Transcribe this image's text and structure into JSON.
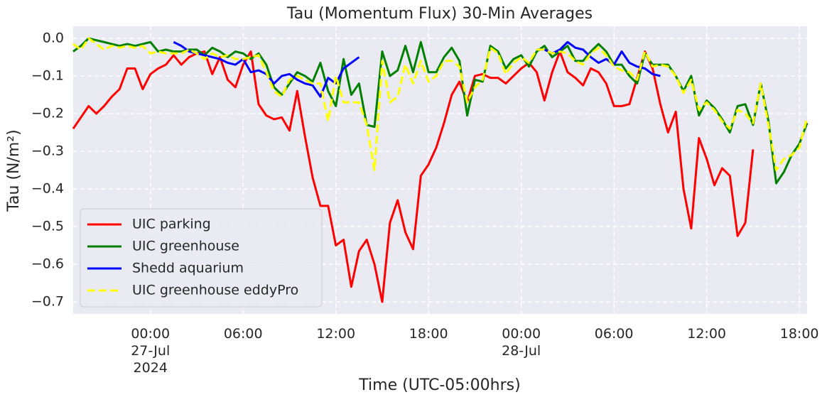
{
  "chart_data": {
    "type": "line",
    "title": "Tau (Momentum Flux) 30-Min Averages",
    "xlabel": "Time (UTC-05:00hrs)",
    "ylabel": "Tau (N/m²)",
    "grid": true,
    "legend": "lower left",
    "xlim": [
      "2024-07-26 19:00",
      "2024-07-28 18:30"
    ],
    "ylim": [
      -0.732,
      0.032
    ],
    "xticks": [
      {
        "value": "2024-07-27 00:00",
        "label": "00:00\n27-Jul\n2024"
      },
      {
        "value": "2024-07-27 06:00",
        "label": "06:00"
      },
      {
        "value": "2024-07-27 12:00",
        "label": "12:00"
      },
      {
        "value": "2024-07-27 18:00",
        "label": "18:00"
      },
      {
        "value": "2024-07-28 00:00",
        "label": "00:00\n28-Jul"
      },
      {
        "value": "2024-07-28 06:00",
        "label": "06:00"
      },
      {
        "value": "2024-07-28 12:00",
        "label": "12:00"
      },
      {
        "value": "2024-07-28 18:00",
        "label": "18:00"
      }
    ],
    "yticks": [
      {
        "value": 0,
        "label": "0.0"
      },
      {
        "value": -0.1,
        "label": "−0.1"
      },
      {
        "value": -0.2,
        "label": "−0.2"
      },
      {
        "value": -0.3,
        "label": "−0.3"
      },
      {
        "value": -0.4,
        "label": "−0.4"
      },
      {
        "value": -0.5,
        "label": "−0.5"
      },
      {
        "value": -0.6,
        "label": "−0.6"
      },
      {
        "value": -0.7,
        "label": "−0.7"
      }
    ],
    "x": [
      "2024-07-26 19:00",
      "2024-07-26 19:30",
      "2024-07-26 20:00",
      "2024-07-26 20:30",
      "2024-07-26 21:00",
      "2024-07-26 21:30",
      "2024-07-26 22:00",
      "2024-07-26 22:30",
      "2024-07-26 23:00",
      "2024-07-26 23:30",
      "2024-07-27 00:00",
      "2024-07-27 00:30",
      "2024-07-27 01:00",
      "2024-07-27 01:30",
      "2024-07-27 02:00",
      "2024-07-27 02:30",
      "2024-07-27 03:00",
      "2024-07-27 03:30",
      "2024-07-27 04:00",
      "2024-07-27 04:30",
      "2024-07-27 05:00",
      "2024-07-27 05:30",
      "2024-07-27 06:00",
      "2024-07-27 06:30",
      "2024-07-27 07:00",
      "2024-07-27 07:30",
      "2024-07-27 08:00",
      "2024-07-27 08:30",
      "2024-07-27 09:00",
      "2024-07-27 09:30",
      "2024-07-27 10:00",
      "2024-07-27 10:30",
      "2024-07-27 11:00",
      "2024-07-27 11:30",
      "2024-07-27 12:00",
      "2024-07-27 12:30",
      "2024-07-27 13:00",
      "2024-07-27 13:30",
      "2024-07-27 14:00",
      "2024-07-27 14:30",
      "2024-07-27 15:00",
      "2024-07-27 15:30",
      "2024-07-27 16:00",
      "2024-07-27 16:30",
      "2024-07-27 17:00",
      "2024-07-27 17:30",
      "2024-07-27 18:00",
      "2024-07-27 18:30",
      "2024-07-27 19:00",
      "2024-07-27 19:30",
      "2024-07-27 20:00",
      "2024-07-27 20:30",
      "2024-07-27 21:00",
      "2024-07-27 21:30",
      "2024-07-27 22:00",
      "2024-07-27 22:30",
      "2024-07-27 23:00",
      "2024-07-27 23:30",
      "2024-07-28 00:00",
      "2024-07-28 00:30",
      "2024-07-28 01:00",
      "2024-07-28 01:30",
      "2024-07-28 02:00",
      "2024-07-28 02:30",
      "2024-07-28 03:00",
      "2024-07-28 03:30",
      "2024-07-28 04:00",
      "2024-07-28 04:30",
      "2024-07-28 05:00",
      "2024-07-28 05:30",
      "2024-07-28 06:00",
      "2024-07-28 06:30",
      "2024-07-28 07:00",
      "2024-07-28 07:30",
      "2024-07-28 08:00",
      "2024-07-28 08:30",
      "2024-07-28 09:00",
      "2024-07-28 09:30",
      "2024-07-28 10:00",
      "2024-07-28 10:30",
      "2024-07-28 11:00",
      "2024-07-28 11:30",
      "2024-07-28 12:00",
      "2024-07-28 12:30",
      "2024-07-28 13:00",
      "2024-07-28 13:30",
      "2024-07-28 14:00",
      "2024-07-28 14:30",
      "2024-07-28 15:00",
      "2024-07-28 15:30",
      "2024-07-28 16:00",
      "2024-07-28 16:30",
      "2024-07-28 17:00",
      "2024-07-28 17:30",
      "2024-07-28 18:00",
      "2024-07-28 18:30"
    ],
    "series": [
      {
        "name": "UIC parking",
        "color": "#ff0000",
        "linestyle": "solid",
        "values": [
          -0.24,
          -0.21,
          -0.18,
          -0.2,
          -0.18,
          -0.155,
          -0.135,
          -0.08,
          -0.08,
          -0.135,
          -0.095,
          -0.08,
          -0.07,
          -0.045,
          -0.07,
          -0.05,
          -0.04,
          -0.035,
          -0.095,
          -0.05,
          -0.11,
          -0.13,
          -0.07,
          -0.035,
          -0.175,
          -0.205,
          -0.215,
          -0.21,
          -0.245,
          -0.14,
          -0.26,
          -0.37,
          -0.445,
          -0.445,
          -0.55,
          -0.535,
          -0.66,
          -0.565,
          -0.535,
          -0.6,
          -0.7,
          -0.49,
          -0.43,
          -0.515,
          -0.56,
          -0.365,
          -0.335,
          -0.29,
          -0.225,
          -0.15,
          -0.115,
          -0.17,
          -0.1,
          -0.095,
          -0.105,
          -0.105,
          -0.12,
          -0.1,
          -0.08,
          -0.065,
          -0.09,
          -0.165,
          -0.09,
          -0.035,
          -0.09,
          -0.105,
          -0.125,
          -0.08,
          -0.09,
          -0.12,
          -0.18,
          -0.18,
          -0.175,
          -0.105,
          -0.035,
          -0.08,
          -0.175,
          -0.25,
          -0.195,
          -0.4,
          -0.505,
          -0.265,
          -0.32,
          -0.39,
          -0.345,
          -0.365,
          -0.525,
          -0.49,
          -0.295,
          null,
          null,
          null,
          null,
          null,
          null,
          null
        ]
      },
      {
        "name": "UIC greenhouse",
        "color": "#008000",
        "linestyle": "solid",
        "values": [
          -0.035,
          -0.02,
          0.0,
          -0.005,
          -0.01,
          -0.015,
          -0.02,
          -0.015,
          -0.02,
          -0.015,
          -0.01,
          -0.035,
          -0.03,
          -0.035,
          -0.035,
          -0.03,
          -0.03,
          -0.045,
          -0.025,
          -0.035,
          -0.05,
          -0.035,
          -0.04,
          -0.055,
          -0.04,
          -0.07,
          -0.13,
          -0.15,
          -0.12,
          -0.09,
          -0.1,
          -0.115,
          -0.065,
          -0.14,
          -0.18,
          -0.055,
          -0.15,
          -0.12,
          -0.23,
          -0.235,
          -0.035,
          -0.1,
          -0.085,
          -0.02,
          -0.09,
          -0.01,
          -0.09,
          -0.09,
          -0.05,
          -0.025,
          -0.06,
          -0.205,
          -0.11,
          -0.115,
          -0.02,
          -0.035,
          -0.08,
          -0.055,
          -0.045,
          -0.075,
          -0.035,
          -0.02,
          -0.05,
          -0.035,
          -0.02,
          -0.06,
          -0.06,
          -0.035,
          -0.015,
          -0.035,
          -0.07,
          -0.07,
          -0.1,
          -0.12,
          -0.04,
          -0.07,
          -0.07,
          -0.07,
          -0.1,
          -0.14,
          -0.1,
          -0.205,
          -0.165,
          -0.185,
          -0.215,
          -0.25,
          -0.18,
          -0.175,
          -0.23,
          -0.12,
          -0.22,
          -0.385,
          -0.355,
          -0.31,
          -0.28,
          -0.225
        ]
      },
      {
        "name": "Shedd aquarium",
        "color": "#0000ff",
        "linestyle": "solid",
        "values": [
          null,
          null,
          null,
          null,
          null,
          null,
          null,
          null,
          null,
          null,
          null,
          null,
          null,
          -0.01,
          -0.02,
          -0.035,
          -0.04,
          -0.045,
          -0.05,
          -0.055,
          -0.065,
          -0.07,
          -0.055,
          -0.09,
          -0.085,
          -0.095,
          -0.12,
          -0.1,
          -0.095,
          -0.11,
          -0.12,
          -0.125,
          -0.155,
          -0.105,
          -0.12,
          -0.08,
          -0.065,
          -0.05,
          null,
          null,
          null,
          null,
          null,
          null,
          null,
          null,
          null,
          null,
          null,
          null,
          null,
          null,
          null,
          null,
          null,
          null,
          null,
          null,
          null,
          null,
          -0.03,
          -0.03,
          -0.04,
          -0.03,
          -0.01,
          -0.025,
          -0.03,
          -0.05,
          -0.065,
          -0.055,
          -0.07,
          -0.035,
          -0.065,
          -0.075,
          -0.08,
          -0.095,
          -0.1,
          null,
          null,
          null,
          null,
          null,
          null,
          null,
          null,
          null,
          null,
          null,
          null,
          null,
          null,
          null,
          null,
          null,
          null,
          null
        ]
      },
      {
        "name": "UIC greenhouse eddyPro",
        "color": "#ffff00",
        "linestyle": "dashed",
        "values": [
          -0.015,
          -0.03,
          0.0,
          -0.015,
          -0.03,
          -0.02,
          -0.025,
          -0.02,
          -0.025,
          -0.02,
          -0.04,
          -0.035,
          -0.04,
          -0.04,
          -0.04,
          -0.03,
          -0.04,
          -0.055,
          -0.04,
          -0.05,
          -0.045,
          -0.055,
          -0.055,
          -0.05,
          -0.045,
          -0.09,
          -0.14,
          -0.155,
          -0.11,
          -0.1,
          -0.11,
          -0.12,
          -0.12,
          -0.22,
          -0.1,
          -0.17,
          -0.17,
          -0.17,
          -0.23,
          -0.35,
          -0.06,
          -0.17,
          -0.155,
          -0.07,
          -0.12,
          -0.06,
          -0.115,
          -0.1,
          -0.06,
          -0.06,
          -0.075,
          -0.17,
          -0.13,
          -0.11,
          -0.025,
          -0.04,
          -0.095,
          -0.065,
          -0.05,
          -0.065,
          -0.03,
          -0.03,
          -0.04,
          -0.035,
          -0.04,
          -0.06,
          -0.07,
          -0.04,
          -0.025,
          -0.045,
          -0.075,
          -0.085,
          -0.09,
          -0.11,
          -0.035,
          -0.075,
          -0.07,
          -0.075,
          -0.1,
          -0.145,
          -0.11,
          -0.19,
          -0.17,
          -0.19,
          -0.22,
          -0.24,
          -0.19,
          -0.2,
          -0.225,
          -0.12,
          -0.23,
          -0.35,
          -0.32,
          -0.31,
          -0.29,
          -0.21
        ]
      }
    ]
  }
}
